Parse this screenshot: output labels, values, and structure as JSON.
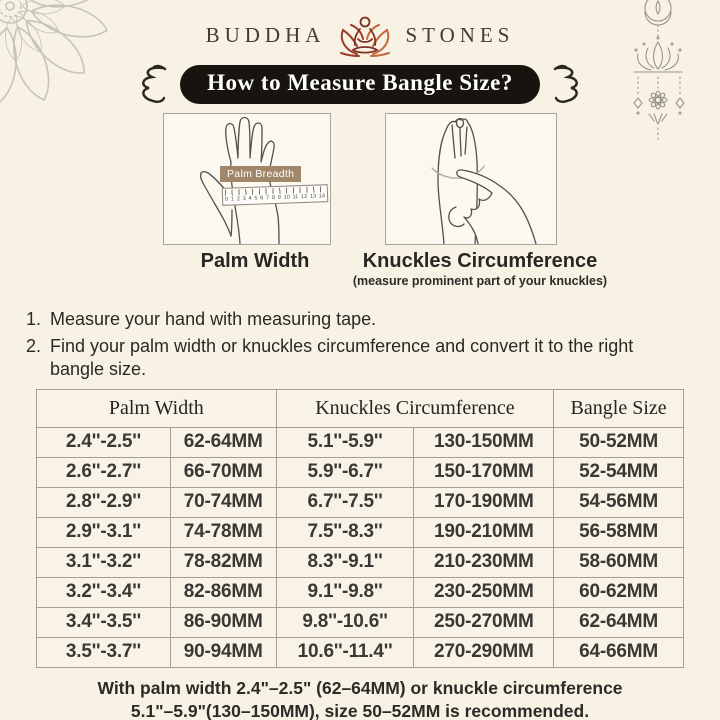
{
  "brand": {
    "buddha": "BUDDHA",
    "stones": "STONES"
  },
  "banner": {
    "title": "How to Measure Bangle Size?"
  },
  "illustrations": {
    "palm": {
      "label": "Palm Width",
      "tag": "Palm Breadth",
      "ruler_numbers": [
        "0",
        "1",
        "2",
        "3",
        "4",
        "5",
        "6",
        "7",
        "8",
        "9",
        "10",
        "11",
        "12",
        "13",
        "14"
      ]
    },
    "knuckles": {
      "label": "Knuckles Circumference",
      "sublabel": "(measure prominent part of your knuckles)"
    }
  },
  "instructions": [
    {
      "num": "1.",
      "text": "Measure your hand with measuring tape."
    },
    {
      "num": "2.",
      "text": "Find your palm width or knuckles circumference and convert it to the right bangle size."
    }
  ],
  "table": {
    "col_headers": [
      "Palm Width",
      "Knuckles Circumference",
      "Bangle Size"
    ],
    "rows": [
      [
        "2.4''-2.5''",
        "62-64MM",
        "5.1''-5.9''",
        "130-150MM",
        "50-52MM"
      ],
      [
        "2.6''-2.7''",
        "66-70MM",
        "5.9''-6.7''",
        "150-170MM",
        "52-54MM"
      ],
      [
        "2.8''-2.9''",
        "70-74MM",
        "6.7''-7.5''",
        "170-190MM",
        "54-56MM"
      ],
      [
        "2.9''-3.1''",
        "74-78MM",
        "7.5''-8.3''",
        "190-210MM",
        "56-58MM"
      ],
      [
        "3.1''-3.2''",
        "78-82MM",
        "8.3''-9.1''",
        "210-230MM",
        "58-60MM"
      ],
      [
        "3.2''-3.4''",
        "82-86MM",
        "9.1''-9.8''",
        "230-250MM",
        "60-62MM"
      ],
      [
        "3.4''-3.5''",
        "86-90MM",
        "9.8''-10.6''",
        "250-270MM",
        "62-64MM"
      ],
      [
        "3.5''-3.7''",
        "90-94MM",
        "10.6''-11.4''",
        "270-290MM",
        "64-66MM"
      ]
    ]
  },
  "footer": {
    "line1": "With palm width 2.4\"–2.5\" (62–64MM) or knuckle circumference",
    "line2": "5.1\"–5.9\"(130–150MM), size 50–52MM is recommended."
  },
  "colors": {
    "background": "#f7f2e4",
    "banner_bg": "#17130e",
    "banner_text": "#ffffff",
    "tag_bg": "#a1876a",
    "lotus_red": "#9e3c2a",
    "lotus_orange": "#c2683b",
    "grid_line": "#a49f93",
    "text_dark": "#2b2926"
  }
}
